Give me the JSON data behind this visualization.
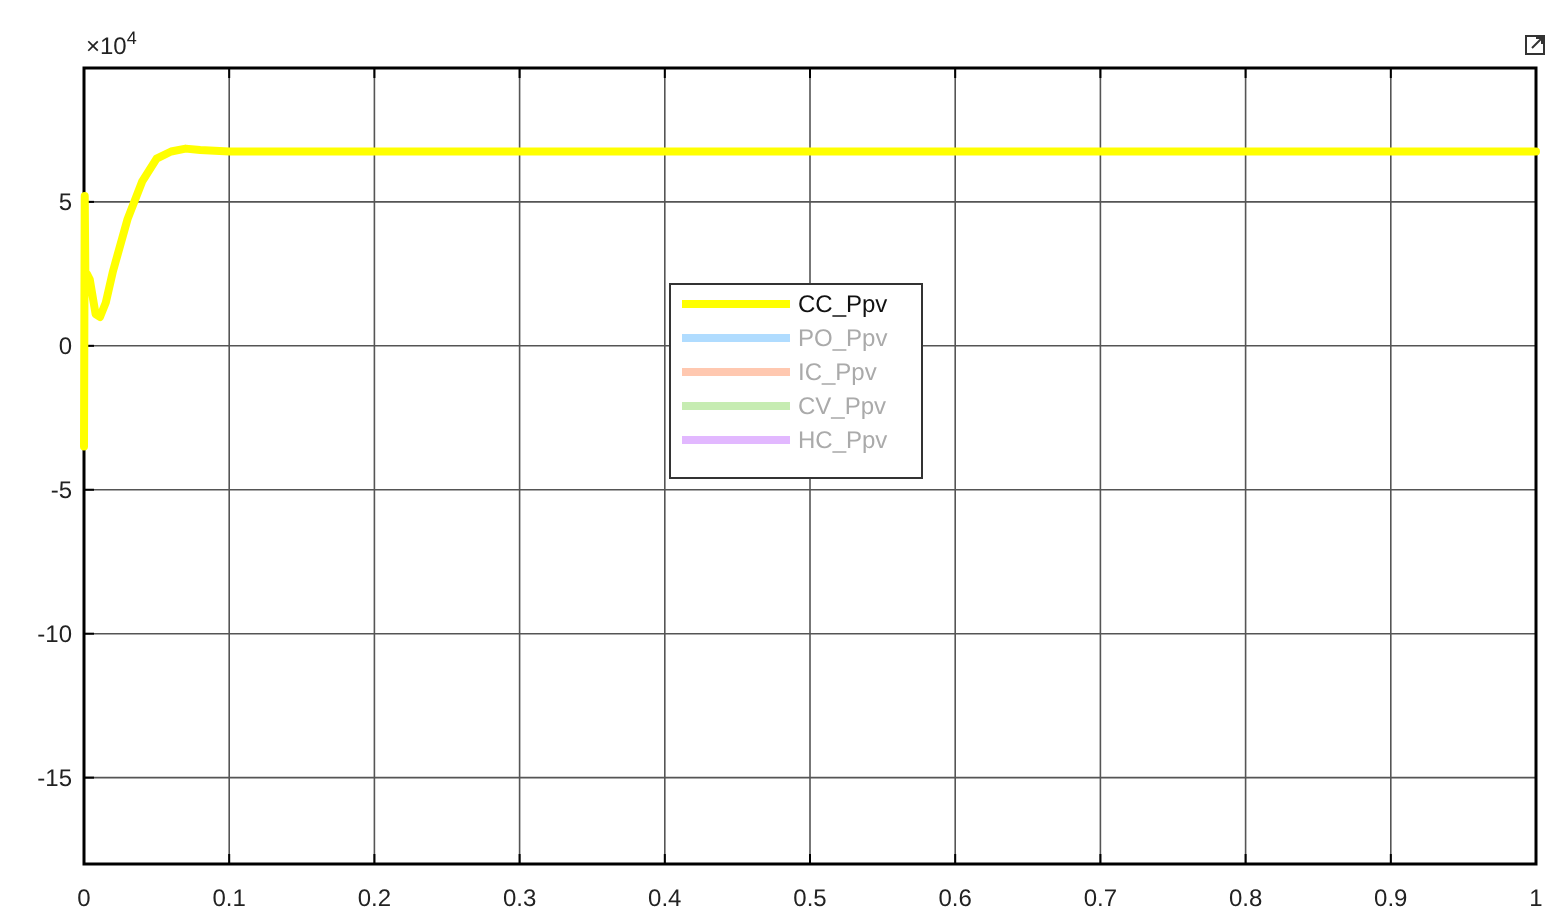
{
  "chart_data": {
    "type": "line",
    "annotations": [
      "×10$^{4}$"
    ],
    "xlim": [
      0,
      1
    ],
    "xticks": [
      0,
      0.1,
      0.2,
      0.3,
      0.4,
      0.5,
      0.6,
      0.7,
      0.8,
      0.9,
      1
    ],
    "ylim": [
      -18,
      9.65
    ],
    "yticks": [
      -15,
      -10,
      -5,
      0,
      5
    ],
    "grid": true,
    "legend": "center",
    "line_style": "solid",
    "marker": "none",
    "series": [
      {
        "name": "CC_Ppv",
        "color": "#ffff00",
        "x": [
          0,
          0.0005,
          0.001,
          0.002,
          0.004,
          0.008,
          0.011,
          0.015,
          0.02,
          0.03,
          0.04,
          0.05,
          0.06,
          0.07,
          0.08,
          0.1,
          1
        ],
        "values": [
          -3.5,
          5.2,
          2.0,
          2.5,
          2.3,
          1.1,
          1.0,
          1.5,
          2.6,
          4.4,
          5.7,
          6.5,
          6.75,
          6.85,
          6.8,
          6.75,
          6.75
        ]
      },
      {
        "name": "PO_Ppv",
        "color": "#b0dcff"
      },
      {
        "name": "IC_Ppv",
        "color": "#ffc8b0"
      },
      {
        "name": "CV_Ppv",
        "color": "#c6ecb2"
      },
      {
        "name": "HC_Ppv",
        "color": "#e2b8ff"
      }
    ]
  }
}
